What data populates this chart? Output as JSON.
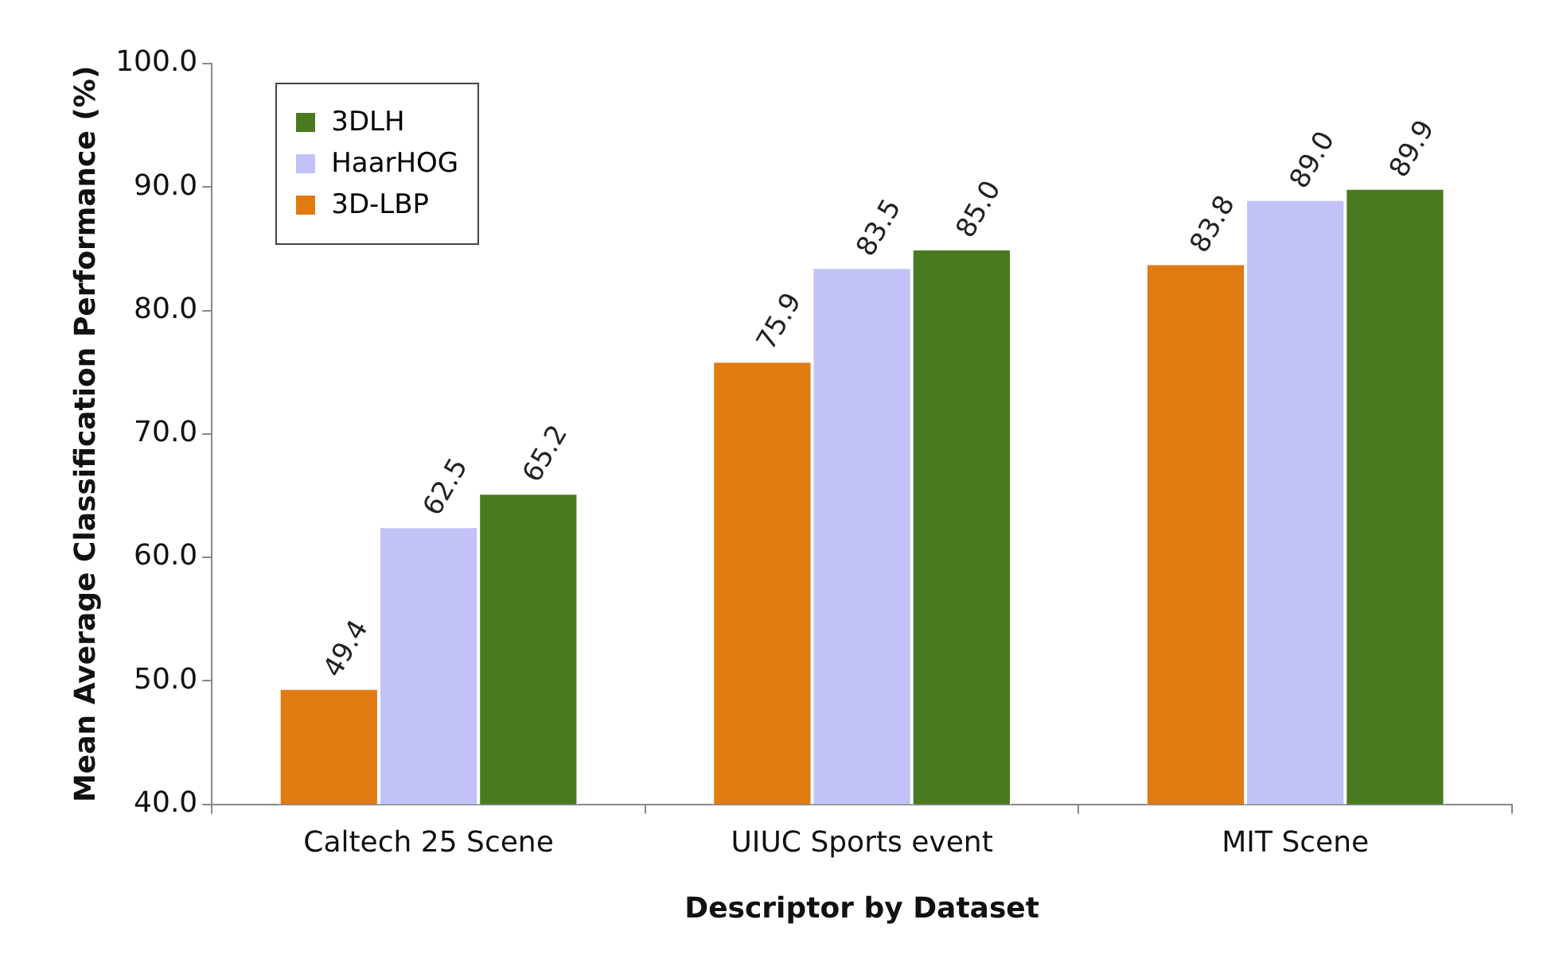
{
  "chart_data": {
    "type": "bar",
    "xlabel": "Descriptor by Dataset",
    "ylabel": "Mean Average Classification Performance (%)",
    "categories": [
      "Caltech 25 Scene",
      "UIUC Sports event",
      "MIT Scene"
    ],
    "series": [
      {
        "name": "3D-LBP",
        "color": "#e07b12",
        "values": [
          49.4,
          75.9,
          83.8
        ],
        "value_labels": [
          "49.4",
          "75.9",
          "83.8"
        ]
      },
      {
        "name": "HaarHOG",
        "color": "#c2c2f7",
        "values": [
          62.5,
          83.5,
          89.0
        ],
        "value_labels": [
          "62.5",
          "83.5",
          "89.0"
        ]
      },
      {
        "name": "3DLH",
        "color": "#4a7a1f",
        "values": [
          65.2,
          85.0,
          89.9
        ],
        "value_labels": [
          "65.2",
          "85.0",
          "89.9"
        ]
      }
    ],
    "ylim": [
      40,
      100
    ],
    "yticks": [
      {
        "value": 40,
        "label": "40.0"
      },
      {
        "value": 50,
        "label": "50.0"
      },
      {
        "value": 60,
        "label": "60.0"
      },
      {
        "value": 70,
        "label": "70.0"
      },
      {
        "value": 80,
        "label": "80.0"
      },
      {
        "value": 90,
        "label": "90.0"
      },
      {
        "value": 100,
        "label": "100.0"
      }
    ],
    "grid": false,
    "legend": "top left"
  }
}
